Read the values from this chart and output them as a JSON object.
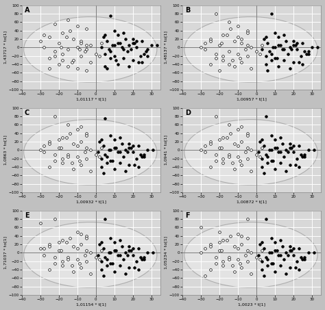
{
  "subplots": [
    "A",
    "B",
    "C",
    "D",
    "E",
    "F"
  ],
  "xlabels": [
    "1,01117 * t[1]",
    "1,00957 * t[1]",
    "1,00932 * t[1]",
    "1,00872 * t[1]",
    "1,01154 * t[1]",
    "1,0023 * t[1]"
  ],
  "ylabels": [
    "1,43717 * to[1]",
    "1,48137 * to[1]",
    "1,0863 * to[1]",
    "1,0941 * to[1]",
    "1,71037 * to[1]",
    "1,05234 * to[1]"
  ],
  "xlim": [
    -40,
    35
  ],
  "ylim": [
    -100,
    100
  ],
  "xticks": [
    -40,
    -30,
    -20,
    -10,
    0,
    10,
    20,
    30
  ],
  "yticks": [
    -100,
    -80,
    -60,
    -40,
    -20,
    0,
    20,
    40,
    60,
    80,
    100
  ],
  "background_color": "#d8d8d8",
  "grid_color": "#ffffff",
  "ellipse_color": "#999999",
  "ellipse_fc": "#e8e8e8",
  "open_color": "white",
  "filled_color": "black",
  "edgecolor": "black",
  "fig_bg": "#c0c0c0",
  "open_points_A": [
    [
      -22,
      55
    ],
    [
      -15,
      65
    ],
    [
      -10,
      50
    ],
    [
      -5,
      45
    ],
    [
      -18,
      35
    ],
    [
      -25,
      25
    ],
    [
      -12,
      20
    ],
    [
      -8,
      15
    ],
    [
      -20,
      10
    ],
    [
      -3,
      5
    ],
    [
      -28,
      0
    ],
    [
      -15,
      -5
    ],
    [
      -10,
      0
    ],
    [
      -5,
      -5
    ],
    [
      -22,
      -10
    ],
    [
      -18,
      -15
    ],
    [
      -8,
      -20
    ],
    [
      -25,
      -25
    ],
    [
      -12,
      -30
    ],
    [
      -3,
      -35
    ],
    [
      -20,
      -40
    ],
    [
      -15,
      -45
    ],
    [
      -10,
      -50
    ],
    [
      -5,
      5
    ],
    [
      -28,
      30
    ],
    [
      2,
      -20
    ],
    [
      -5,
      -55
    ],
    [
      -18,
      -30
    ],
    [
      -8,
      10
    ],
    [
      0,
      -15
    ],
    [
      -30,
      15
    ],
    [
      -14,
      40
    ],
    [
      -6,
      -10
    ],
    [
      -22,
      -20
    ],
    [
      -16,
      25
    ],
    [
      -9,
      -5
    ],
    [
      -25,
      -50
    ],
    [
      3,
      10
    ],
    [
      -13,
      -35
    ],
    [
      -19,
      0
    ]
  ],
  "filled_points_A": [
    [
      8,
      75
    ],
    [
      5,
      30
    ],
    [
      10,
      40
    ],
    [
      15,
      35
    ],
    [
      20,
      20
    ],
    [
      25,
      15
    ],
    [
      12,
      10
    ],
    [
      18,
      5
    ],
    [
      22,
      0
    ],
    [
      28,
      -5
    ],
    [
      8,
      -10
    ],
    [
      5,
      -15
    ],
    [
      10,
      -20
    ],
    [
      15,
      -25
    ],
    [
      20,
      -30
    ],
    [
      25,
      -35
    ],
    [
      12,
      -40
    ],
    [
      18,
      -45
    ],
    [
      6,
      -50
    ],
    [
      30,
      5
    ],
    [
      3,
      0
    ],
    [
      7,
      -5
    ],
    [
      13,
      10
    ],
    [
      22,
      15
    ],
    [
      27,
      -10
    ],
    [
      9,
      5
    ],
    [
      16,
      20
    ],
    [
      24,
      -20
    ],
    [
      11,
      -30
    ],
    [
      4,
      25
    ],
    [
      19,
      -5
    ],
    [
      8,
      -25
    ],
    [
      14,
      0
    ],
    [
      21,
      10
    ],
    [
      26,
      -15
    ],
    [
      33,
      5
    ],
    [
      17,
      -10
    ],
    [
      6,
      15
    ],
    [
      23,
      -35
    ],
    [
      10,
      5
    ],
    [
      15,
      -5
    ],
    [
      20,
      10
    ],
    [
      28,
      -20
    ],
    [
      5,
      -45
    ],
    [
      12,
      30
    ]
  ],
  "open_points_B": [
    [
      -22,
      80
    ],
    [
      -15,
      60
    ],
    [
      -10,
      50
    ],
    [
      -5,
      40
    ],
    [
      -18,
      30
    ],
    [
      -25,
      20
    ],
    [
      -12,
      15
    ],
    [
      -8,
      10
    ],
    [
      -20,
      5
    ],
    [
      -3,
      0
    ],
    [
      -28,
      -5
    ],
    [
      -15,
      -10
    ],
    [
      -10,
      -15
    ],
    [
      -5,
      -20
    ],
    [
      -22,
      -25
    ],
    [
      -18,
      -30
    ],
    [
      -8,
      -35
    ],
    [
      -25,
      -40
    ],
    [
      -12,
      -45
    ],
    [
      -3,
      -50
    ],
    [
      -20,
      -55
    ],
    [
      -15,
      -40
    ],
    [
      -10,
      25
    ],
    [
      -5,
      35
    ],
    [
      -28,
      10
    ],
    [
      2,
      -15
    ],
    [
      -5,
      5
    ],
    [
      -18,
      -20
    ],
    [
      -8,
      20
    ],
    [
      0,
      -10
    ],
    [
      -30,
      0
    ],
    [
      -14,
      45
    ],
    [
      -6,
      -5
    ],
    [
      -22,
      -15
    ],
    [
      -16,
      30
    ],
    [
      -9,
      -25
    ],
    [
      -25,
      15
    ],
    [
      3,
      5
    ],
    [
      -13,
      -30
    ],
    [
      -19,
      10
    ]
  ],
  "filled_points_B": [
    [
      8,
      80
    ],
    [
      5,
      25
    ],
    [
      10,
      35
    ],
    [
      15,
      30
    ],
    [
      20,
      15
    ],
    [
      25,
      10
    ],
    [
      12,
      5
    ],
    [
      18,
      0
    ],
    [
      22,
      -5
    ],
    [
      28,
      -10
    ],
    [
      8,
      -15
    ],
    [
      5,
      -20
    ],
    [
      10,
      -25
    ],
    [
      15,
      -30
    ],
    [
      20,
      -35
    ],
    [
      25,
      -40
    ],
    [
      12,
      -45
    ],
    [
      18,
      -50
    ],
    [
      6,
      -55
    ],
    [
      30,
      0
    ],
    [
      3,
      -5
    ],
    [
      7,
      -10
    ],
    [
      13,
      5
    ],
    [
      22,
      10
    ],
    [
      27,
      -15
    ],
    [
      9,
      0
    ],
    [
      16,
      15
    ],
    [
      24,
      -20
    ],
    [
      11,
      -25
    ],
    [
      4,
      20
    ],
    [
      19,
      -5
    ],
    [
      8,
      -30
    ],
    [
      14,
      -5
    ],
    [
      21,
      5
    ],
    [
      26,
      -10
    ],
    [
      33,
      0
    ],
    [
      17,
      -15
    ],
    [
      6,
      10
    ],
    [
      23,
      -35
    ],
    [
      10,
      0
    ],
    [
      15,
      -5
    ],
    [
      20,
      5
    ],
    [
      28,
      -15
    ],
    [
      5,
      -40
    ],
    [
      12,
      25
    ]
  ],
  "open_points_C": [
    [
      -22,
      80
    ],
    [
      -15,
      60
    ],
    [
      -10,
      50
    ],
    [
      -8,
      55
    ],
    [
      -5,
      40
    ],
    [
      -18,
      30
    ],
    [
      -25,
      20
    ],
    [
      -12,
      15
    ],
    [
      -20,
      5
    ],
    [
      -3,
      0
    ],
    [
      -28,
      -5
    ],
    [
      -15,
      -10
    ],
    [
      -10,
      -15
    ],
    [
      -5,
      -20
    ],
    [
      -22,
      -25
    ],
    [
      -18,
      -30
    ],
    [
      -8,
      -35
    ],
    [
      -25,
      -40
    ],
    [
      -12,
      -45
    ],
    [
      -3,
      -50
    ],
    [
      -20,
      25
    ],
    [
      -15,
      -15
    ],
    [
      -10,
      10
    ],
    [
      -5,
      35
    ],
    [
      -28,
      10
    ],
    [
      2,
      -15
    ],
    [
      -5,
      5
    ],
    [
      -18,
      -20
    ],
    [
      -8,
      20
    ],
    [
      0,
      -10
    ],
    [
      -30,
      0
    ],
    [
      -14,
      40
    ],
    [
      -6,
      -5
    ],
    [
      -22,
      -10
    ],
    [
      -16,
      30
    ],
    [
      -9,
      -25
    ],
    [
      -25,
      15
    ],
    [
      3,
      5
    ],
    [
      -13,
      -30
    ],
    [
      -19,
      5
    ]
  ],
  "filled_points_C": [
    [
      5,
      75
    ],
    [
      3,
      25
    ],
    [
      8,
      35
    ],
    [
      13,
      30
    ],
    [
      18,
      15
    ],
    [
      23,
      10
    ],
    [
      10,
      5
    ],
    [
      16,
      0
    ],
    [
      20,
      -5
    ],
    [
      26,
      -10
    ],
    [
      6,
      -15
    ],
    [
      3,
      -20
    ],
    [
      8,
      -25
    ],
    [
      13,
      -30
    ],
    [
      18,
      -35
    ],
    [
      23,
      -40
    ],
    [
      10,
      -45
    ],
    [
      16,
      -50
    ],
    [
      4,
      -55
    ],
    [
      28,
      0
    ],
    [
      1,
      -5
    ],
    [
      5,
      -10
    ],
    [
      11,
      5
    ],
    [
      20,
      10
    ],
    [
      25,
      -15
    ],
    [
      7,
      0
    ],
    [
      14,
      15
    ],
    [
      22,
      -20
    ],
    [
      9,
      -25
    ],
    [
      2,
      20
    ],
    [
      17,
      -5
    ],
    [
      6,
      -30
    ],
    [
      12,
      -5
    ],
    [
      19,
      5
    ],
    [
      24,
      -10
    ],
    [
      31,
      0
    ],
    [
      15,
      -15
    ],
    [
      4,
      10
    ],
    [
      21,
      -35
    ],
    [
      8,
      0
    ],
    [
      13,
      -5
    ],
    [
      18,
      5
    ],
    [
      26,
      -15
    ],
    [
      3,
      -40
    ],
    [
      10,
      25
    ]
  ],
  "open_points_D": [
    [
      -22,
      80
    ],
    [
      -15,
      60
    ],
    [
      -10,
      50
    ],
    [
      -8,
      55
    ],
    [
      -5,
      40
    ],
    [
      -18,
      30
    ],
    [
      -25,
      20
    ],
    [
      -12,
      15
    ],
    [
      -20,
      5
    ],
    [
      -3,
      0
    ],
    [
      -28,
      -5
    ],
    [
      -15,
      -10
    ],
    [
      -10,
      -15
    ],
    [
      -5,
      -20
    ],
    [
      -22,
      -25
    ],
    [
      -18,
      -30
    ],
    [
      -8,
      -35
    ],
    [
      -25,
      -40
    ],
    [
      -12,
      -45
    ],
    [
      -3,
      -50
    ],
    [
      -20,
      25
    ],
    [
      -15,
      -15
    ],
    [
      -10,
      10
    ],
    [
      -5,
      35
    ],
    [
      -28,
      10
    ],
    [
      2,
      -15
    ],
    [
      -5,
      5
    ],
    [
      -18,
      -20
    ],
    [
      -8,
      20
    ],
    [
      0,
      -10
    ],
    [
      -30,
      0
    ],
    [
      -14,
      40
    ],
    [
      -6,
      -5
    ],
    [
      -22,
      -10
    ],
    [
      -16,
      30
    ],
    [
      -9,
      -25
    ],
    [
      -25,
      15
    ],
    [
      3,
      5
    ],
    [
      -13,
      -30
    ],
    [
      -19,
      5
    ]
  ],
  "filled_points_D": [
    [
      5,
      80
    ],
    [
      3,
      25
    ],
    [
      8,
      35
    ],
    [
      13,
      30
    ],
    [
      18,
      15
    ],
    [
      23,
      10
    ],
    [
      10,
      5
    ],
    [
      16,
      0
    ],
    [
      20,
      -5
    ],
    [
      26,
      -10
    ],
    [
      6,
      -15
    ],
    [
      3,
      -20
    ],
    [
      8,
      -25
    ],
    [
      13,
      -30
    ],
    [
      18,
      -35
    ],
    [
      23,
      -40
    ],
    [
      10,
      -45
    ],
    [
      16,
      -50
    ],
    [
      4,
      -55
    ],
    [
      28,
      0
    ],
    [
      1,
      -5
    ],
    [
      5,
      -10
    ],
    [
      11,
      5
    ],
    [
      20,
      10
    ],
    [
      25,
      -15
    ],
    [
      7,
      0
    ],
    [
      14,
      15
    ],
    [
      22,
      -20
    ],
    [
      9,
      -25
    ],
    [
      2,
      20
    ],
    [
      17,
      -5
    ],
    [
      6,
      -30
    ],
    [
      12,
      -5
    ],
    [
      19,
      5
    ],
    [
      24,
      -10
    ],
    [
      31,
      0
    ],
    [
      15,
      -15
    ],
    [
      4,
      10
    ],
    [
      21,
      -35
    ],
    [
      8,
      0
    ],
    [
      13,
      -5
    ],
    [
      18,
      5
    ],
    [
      26,
      -15
    ],
    [
      3,
      -40
    ],
    [
      10,
      25
    ]
  ],
  "open_points_E": [
    [
      -22,
      80
    ],
    [
      -30,
      70
    ],
    [
      -10,
      50
    ],
    [
      -8,
      45
    ],
    [
      -5,
      40
    ],
    [
      -18,
      30
    ],
    [
      -25,
      20
    ],
    [
      -12,
      15
    ],
    [
      -20,
      5
    ],
    [
      -3,
      0
    ],
    [
      -28,
      -5
    ],
    [
      -15,
      -10
    ],
    [
      -10,
      -15
    ],
    [
      -5,
      -20
    ],
    [
      -22,
      -25
    ],
    [
      -18,
      -30
    ],
    [
      -8,
      -35
    ],
    [
      -25,
      -40
    ],
    [
      -12,
      -45
    ],
    [
      -3,
      -50
    ],
    [
      -20,
      25
    ],
    [
      -15,
      -15
    ],
    [
      -10,
      10
    ],
    [
      -5,
      35
    ],
    [
      -28,
      10
    ],
    [
      2,
      -15
    ],
    [
      -5,
      5
    ],
    [
      -18,
      -20
    ],
    [
      -8,
      20
    ],
    [
      0,
      -10
    ],
    [
      -30,
      10
    ],
    [
      -14,
      35
    ],
    [
      -6,
      -5
    ],
    [
      -22,
      -10
    ],
    [
      -16,
      25
    ],
    [
      -9,
      -25
    ],
    [
      -25,
      15
    ],
    [
      3,
      5
    ],
    [
      -13,
      -30
    ],
    [
      -19,
      5
    ]
  ],
  "filled_points_E": [
    [
      5,
      80
    ],
    [
      3,
      25
    ],
    [
      8,
      35
    ],
    [
      13,
      30
    ],
    [
      18,
      15
    ],
    [
      23,
      10
    ],
    [
      10,
      5
    ],
    [
      16,
      0
    ],
    [
      20,
      -5
    ],
    [
      26,
      -10
    ],
    [
      6,
      -15
    ],
    [
      3,
      -20
    ],
    [
      8,
      -25
    ],
    [
      13,
      -30
    ],
    [
      18,
      -35
    ],
    [
      23,
      -40
    ],
    [
      10,
      -45
    ],
    [
      16,
      -50
    ],
    [
      4,
      -55
    ],
    [
      28,
      0
    ],
    [
      1,
      -5
    ],
    [
      5,
      -10
    ],
    [
      11,
      5
    ],
    [
      20,
      10
    ],
    [
      25,
      -15
    ],
    [
      7,
      0
    ],
    [
      14,
      15
    ],
    [
      22,
      -20
    ],
    [
      9,
      -25
    ],
    [
      2,
      20
    ],
    [
      17,
      -5
    ],
    [
      6,
      -30
    ],
    [
      12,
      -5
    ],
    [
      19,
      5
    ],
    [
      24,
      -10
    ],
    [
      31,
      0
    ],
    [
      15,
      -15
    ],
    [
      4,
      10
    ],
    [
      21,
      -35
    ],
    [
      8,
      0
    ],
    [
      13,
      -5
    ],
    [
      18,
      5
    ],
    [
      26,
      -15
    ],
    [
      3,
      -40
    ],
    [
      10,
      25
    ]
  ],
  "open_points_F": [
    [
      -5,
      80
    ],
    [
      -30,
      60
    ],
    [
      -20,
      50
    ],
    [
      -10,
      45
    ],
    [
      -8,
      40
    ],
    [
      -18,
      30
    ],
    [
      -25,
      20
    ],
    [
      -12,
      15
    ],
    [
      -20,
      5
    ],
    [
      -3,
      0
    ],
    [
      -28,
      -55
    ],
    [
      -15,
      -10
    ],
    [
      -10,
      -15
    ],
    [
      -5,
      -20
    ],
    [
      -22,
      -25
    ],
    [
      -18,
      -30
    ],
    [
      -8,
      -35
    ],
    [
      -25,
      -40
    ],
    [
      -12,
      -45
    ],
    [
      -3,
      -50
    ],
    [
      -20,
      25
    ],
    [
      -15,
      -15
    ],
    [
      -10,
      10
    ],
    [
      -5,
      35
    ],
    [
      -28,
      10
    ],
    [
      2,
      -15
    ],
    [
      -5,
      5
    ],
    [
      -18,
      -20
    ],
    [
      -8,
      20
    ],
    [
      0,
      -10
    ],
    [
      -30,
      0
    ],
    [
      -14,
      40
    ],
    [
      -6,
      -5
    ],
    [
      -22,
      -10
    ],
    [
      -16,
      30
    ],
    [
      -9,
      -25
    ],
    [
      -25,
      15
    ],
    [
      3,
      5
    ],
    [
      -13,
      -30
    ],
    [
      -19,
      5
    ]
  ],
  "filled_points_F": [
    [
      5,
      80
    ],
    [
      3,
      25
    ],
    [
      8,
      35
    ],
    [
      13,
      30
    ],
    [
      18,
      15
    ],
    [
      23,
      10
    ],
    [
      10,
      5
    ],
    [
      16,
      0
    ],
    [
      20,
      -5
    ],
    [
      26,
      -10
    ],
    [
      6,
      -15
    ],
    [
      3,
      -20
    ],
    [
      8,
      -25
    ],
    [
      13,
      -30
    ],
    [
      18,
      -35
    ],
    [
      23,
      -40
    ],
    [
      10,
      -45
    ],
    [
      16,
      -50
    ],
    [
      4,
      -55
    ],
    [
      28,
      0
    ],
    [
      1,
      -5
    ],
    [
      5,
      -10
    ],
    [
      11,
      5
    ],
    [
      20,
      10
    ],
    [
      25,
      -15
    ],
    [
      7,
      0
    ],
    [
      14,
      15
    ],
    [
      22,
      -20
    ],
    [
      9,
      -25
    ],
    [
      2,
      20
    ],
    [
      17,
      -5
    ],
    [
      6,
      -30
    ],
    [
      12,
      -5
    ],
    [
      19,
      5
    ],
    [
      24,
      -10
    ],
    [
      31,
      0
    ],
    [
      15,
      -15
    ],
    [
      4,
      10
    ],
    [
      21,
      -35
    ],
    [
      8,
      0
    ],
    [
      13,
      -5
    ],
    [
      18,
      5
    ],
    [
      26,
      -15
    ],
    [
      3,
      -40
    ],
    [
      10,
      25
    ]
  ]
}
